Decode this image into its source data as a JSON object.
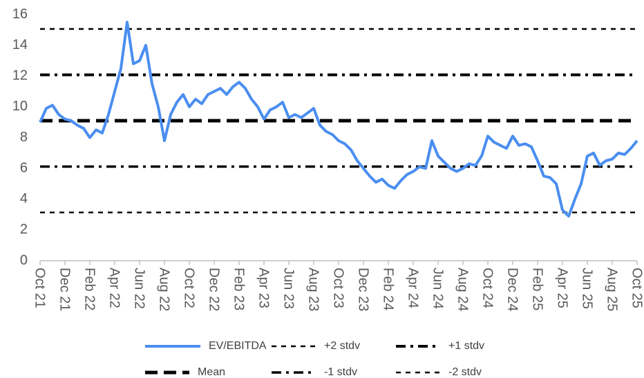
{
  "chart_data": {
    "type": "line",
    "categories": [
      "Oct 21",
      null,
      null,
      null,
      "Dec 21",
      null,
      null,
      null,
      "Feb 22",
      null,
      null,
      null,
      "Apr 22",
      null,
      null,
      null,
      "Jun 22",
      null,
      null,
      null,
      "Aug 22",
      null,
      null,
      null,
      "Oct 22",
      null,
      null,
      null,
      "Dec 22",
      null,
      null,
      null,
      "Feb 23",
      null,
      null,
      null,
      "Apr 23",
      null,
      null,
      null,
      "Jun 23",
      null,
      null,
      null,
      "Aug 23",
      null,
      null,
      null,
      "Oct 23",
      null,
      null,
      null,
      "Dec 23",
      null,
      null,
      null,
      "Feb 24",
      null,
      null,
      null,
      "Apr 24",
      null,
      null,
      null,
      "Jun 24",
      null,
      null,
      null,
      "Aug 24",
      null,
      null,
      null,
      "Oct 24",
      null,
      null,
      null,
      "Dec 24",
      null,
      null,
      null,
      "Feb 25",
      null,
      null,
      null,
      "Apr 25",
      null,
      null,
      null,
      "Jun 25",
      null,
      null,
      null,
      "Aug 25",
      null,
      null,
      null,
      "Oct 25"
    ],
    "series": [
      {
        "name": "EV/EBITDA",
        "color": "#4a8ef0",
        "values": [
          9.0,
          9.9,
          10.1,
          9.5,
          9.2,
          9.1,
          8.8,
          8.6,
          8.0,
          8.5,
          8.3,
          9.5,
          11.0,
          12.5,
          15.5,
          12.8,
          13.0,
          14.0,
          11.5,
          10.0,
          7.8,
          9.5,
          10.3,
          10.8,
          10.0,
          10.5,
          10.2,
          10.8,
          11.0,
          11.2,
          10.8,
          11.3,
          11.6,
          11.2,
          10.5,
          10.0,
          9.2,
          9.8,
          10.0,
          10.3,
          9.3,
          9.5,
          9.3,
          9.6,
          9.9,
          8.8,
          8.4,
          8.2,
          7.8,
          7.6,
          7.2,
          6.5,
          6.0,
          5.5,
          5.1,
          5.3,
          4.9,
          4.7,
          5.2,
          5.6,
          5.8,
          6.1,
          6.0,
          7.8,
          6.8,
          6.4,
          6.0,
          5.8,
          6.0,
          6.3,
          6.2,
          6.8,
          8.1,
          7.7,
          7.5,
          7.3,
          8.1,
          7.5,
          7.6,
          7.4,
          6.5,
          5.5,
          5.4,
          5.0,
          3.3,
          2.9,
          4.0,
          5.0,
          6.8,
          7.0,
          6.2,
          6.5,
          6.6,
          7.0,
          6.9,
          7.3,
          7.8
        ]
      }
    ],
    "reference_lines": [
      {
        "name": "+2 stdv",
        "value": 15.06,
        "color": "#000000",
        "dash": "7,7",
        "width": 2.5
      },
      {
        "name": "+1 stdv",
        "value": 12.08,
        "color": "#000000",
        "dash": "14,7,4,7",
        "width": 4
      },
      {
        "name": "Mean",
        "value": 9.1,
        "color": "#000000",
        "dash": "18,9",
        "width": 5
      },
      {
        "name": "-1 stdv",
        "value": 6.12,
        "color": "#000000",
        "dash": "14,7,4,7",
        "width": 3.5
      },
      {
        "name": "-2 stdv",
        "value": 3.14,
        "color": "#000000",
        "dash": "7,7",
        "width": 2.5
      }
    ],
    "ylim": [
      0,
      16
    ],
    "yticks": [
      0,
      2,
      4,
      6,
      8,
      10,
      12,
      14,
      16
    ]
  }
}
